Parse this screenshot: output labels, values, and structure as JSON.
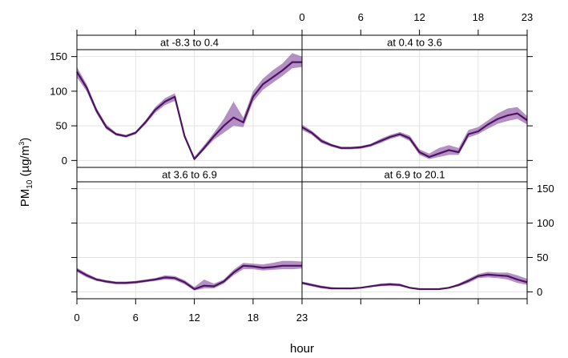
{
  "chart_data": {
    "type": "line",
    "xlabel": "hour",
    "ylabel": "PM",
    "ylabel_sub": "10",
    "ylabel_unit_open": " (µg/m",
    "ylabel_unit_sup": "3",
    "ylabel_unit_close": ")",
    "xlim": [
      0,
      23
    ],
    "ylim": [
      -10,
      160
    ],
    "x_ticks": [
      0,
      6,
      12,
      18,
      23
    ],
    "y_ticks": [
      0,
      50,
      100,
      150
    ],
    "grid": true,
    "colors": {
      "line": "#4b1460",
      "band": "#9b6bb0",
      "strip_bg": "#ffffff",
      "grid": "#e3e3e3",
      "frame": "#000000"
    },
    "hours": [
      0,
      1,
      2,
      3,
      4,
      5,
      6,
      7,
      8,
      9,
      10,
      11,
      12,
      13,
      14,
      15,
      16,
      17,
      18,
      19,
      20,
      21,
      22,
      23
    ],
    "panels": [
      {
        "label": "at -8.3 to 0.4",
        "mean": [
          128,
          105,
          72,
          48,
          38,
          35,
          40,
          55,
          73,
          85,
          92,
          35,
          2,
          18,
          35,
          50,
          62,
          55,
          92,
          110,
          120,
          130,
          142,
          142
        ],
        "lower": [
          120,
          100,
          68,
          45,
          36,
          33,
          38,
          52,
          69,
          80,
          86,
          32,
          0,
          15,
          30,
          40,
          50,
          48,
          85,
          102,
          112,
          122,
          133,
          135
        ],
        "upper": [
          135,
          110,
          76,
          52,
          40,
          37,
          42,
          58,
          77,
          90,
          97,
          38,
          5,
          22,
          40,
          60,
          85,
          62,
          100,
          118,
          130,
          140,
          155,
          150
        ]
      },
      {
        "label": "at 0.4 to 3.6",
        "mean": [
          48,
          40,
          28,
          22,
          18,
          18,
          19,
          22,
          28,
          34,
          38,
          32,
          12,
          5,
          10,
          15,
          12,
          38,
          42,
          52,
          60,
          65,
          68,
          58
        ],
        "lower": [
          44,
          37,
          25,
          20,
          16,
          16,
          17,
          20,
          25,
          31,
          35,
          28,
          8,
          2,
          5,
          8,
          8,
          33,
          38,
          46,
          53,
          57,
          60,
          52
        ],
        "upper": [
          52,
          43,
          31,
          24,
          20,
          20,
          21,
          24,
          31,
          37,
          41,
          36,
          16,
          10,
          18,
          22,
          18,
          44,
          48,
          58,
          68,
          75,
          77,
          64
        ]
      },
      {
        "label": "at 3.6 to 6.9",
        "mean": [
          32,
          24,
          18,
          15,
          13,
          13,
          14,
          16,
          18,
          21,
          20,
          14,
          4,
          9,
          8,
          15,
          28,
          38,
          37,
          35,
          36,
          38,
          38,
          38
        ],
        "lower": [
          29,
          21,
          16,
          13,
          11,
          11,
          12,
          14,
          16,
          18,
          17,
          11,
          2,
          5,
          5,
          12,
          24,
          33,
          33,
          31,
          32,
          33,
          33,
          34
        ],
        "upper": [
          35,
          27,
          20,
          17,
          15,
          15,
          16,
          18,
          20,
          24,
          23,
          17,
          7,
          18,
          12,
          18,
          32,
          42,
          41,
          40,
          42,
          45,
          45,
          44
        ]
      },
      {
        "label": "at 6.9 to 20.1",
        "mean": [
          13,
          10,
          7,
          5,
          5,
          5,
          6,
          8,
          10,
          11,
          10,
          6,
          4,
          4,
          4,
          6,
          10,
          16,
          23,
          25,
          24,
          23,
          18,
          14
        ],
        "lower": [
          11,
          8,
          5,
          4,
          4,
          4,
          5,
          7,
          8,
          9,
          8,
          5,
          3,
          3,
          3,
          5,
          8,
          13,
          20,
          21,
          20,
          18,
          13,
          10
        ],
        "upper": [
          15,
          12,
          9,
          7,
          6,
          6,
          7,
          9,
          12,
          13,
          12,
          7,
          5,
          5,
          5,
          7,
          12,
          19,
          26,
          29,
          28,
          28,
          24,
          19
        ]
      }
    ]
  }
}
